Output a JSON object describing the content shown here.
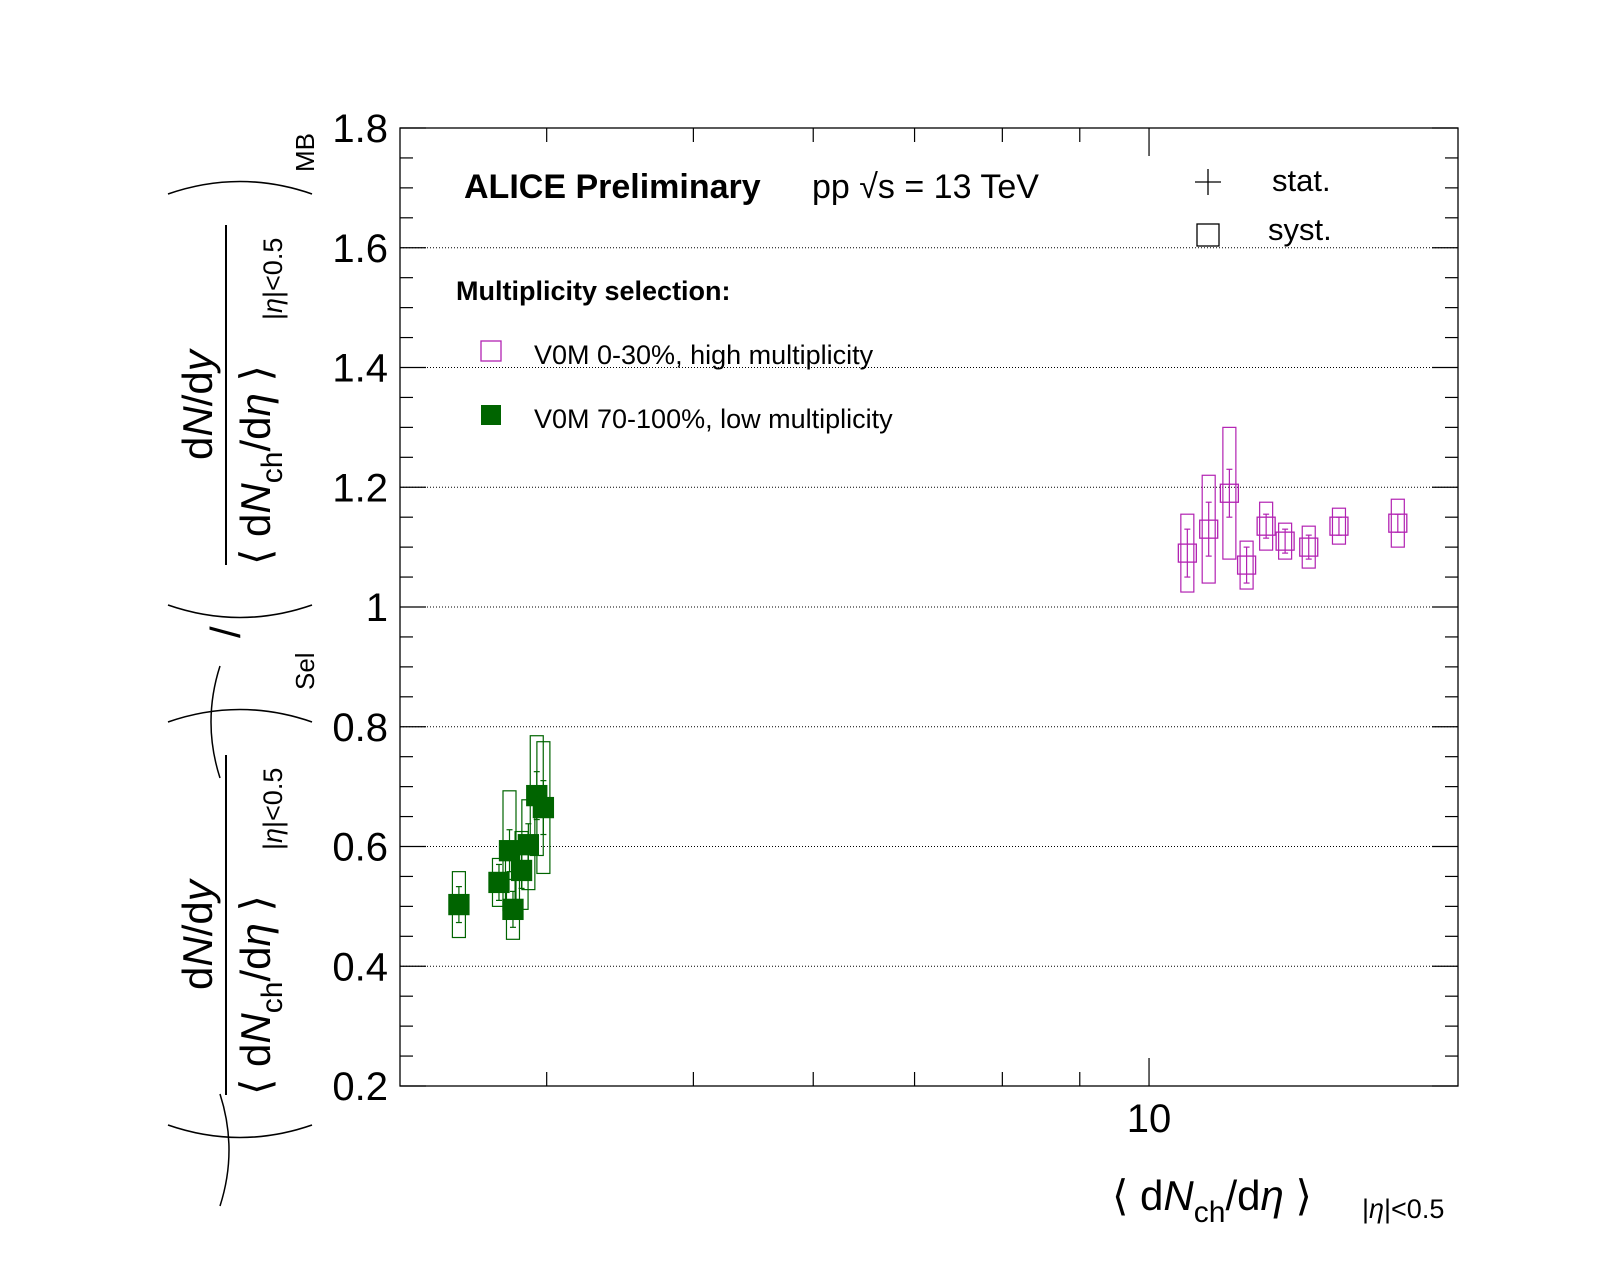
{
  "chart_data": {
    "type": "scatter",
    "title": "ALICE Preliminary",
    "subtitle": "pp √s = 13 TeV",
    "xlabel": "⟨ dN_ch/dη ⟩ |η|<0.5",
    "ylabel": "(dN/dy / ⟨dN_ch/dη⟩_|η|<0.5)_Sel / (dN/dy / ⟨dN_ch/dη⟩_|η|<0.5)_MB",
    "x_scale": "log",
    "xlim": [
      3.2,
      16
    ],
    "ylim": [
      0.2,
      1.8
    ],
    "y_ticks": [
      "0.2",
      "0.4",
      "0.6",
      "0.8",
      "1",
      "1.2",
      "1.4",
      "1.6",
      "1.8"
    ],
    "x_ticks": [
      "10"
    ],
    "grid": "horizontal dotted",
    "legend_title": "Multiplicity selection:",
    "error_legend": [
      "stat.",
      "syst."
    ],
    "series": [
      {
        "name": "V0M 0-30%, high multiplicity",
        "color": "#b222b2",
        "marker": "open-square",
        "points": [
          {
            "x": 10.6,
            "y": 1.09,
            "stat": 0.04,
            "syst": 0.065
          },
          {
            "x": 10.95,
            "y": 1.13,
            "stat": 0.045,
            "syst": 0.09
          },
          {
            "x": 11.3,
            "y": 1.19,
            "stat": 0.04,
            "syst": 0.11
          },
          {
            "x": 11.6,
            "y": 1.07,
            "stat": 0.03,
            "syst": 0.04
          },
          {
            "x": 11.95,
            "y": 1.135,
            "stat": 0.02,
            "syst": 0.04
          },
          {
            "x": 12.3,
            "y": 1.11,
            "stat": 0.02,
            "syst": 0.03
          },
          {
            "x": 12.75,
            "y": 1.1,
            "stat": 0.02,
            "syst": 0.035
          },
          {
            "x": 13.35,
            "y": 1.135,
            "stat": 0.015,
            "syst": 0.03
          },
          {
            "x": 14.6,
            "y": 1.14,
            "stat": 0.015,
            "syst": 0.04
          }
        ]
      },
      {
        "name": "V0M 70-100%, low multiplicity",
        "color": "#006400",
        "marker": "filled-square",
        "points": [
          {
            "x": 3.5,
            "y": 0.503,
            "stat": 0.03,
            "syst": 0.055
          },
          {
            "x": 3.72,
            "y": 0.54,
            "stat": 0.03,
            "syst": 0.04
          },
          {
            "x": 3.78,
            "y": 0.593,
            "stat": 0.035,
            "syst": 0.1
          },
          {
            "x": 3.8,
            "y": 0.495,
            "stat": 0.03,
            "syst": 0.05
          },
          {
            "x": 3.85,
            "y": 0.56,
            "stat": 0.03,
            "syst": 0.065
          },
          {
            "x": 3.89,
            "y": 0.603,
            "stat": 0.035,
            "syst": 0.075
          },
          {
            "x": 3.94,
            "y": 0.685,
            "stat": 0.04,
            "syst": 0.1
          },
          {
            "x": 3.98,
            "y": 0.665,
            "stat": 0.045,
            "syst": 0.11
          }
        ]
      }
    ]
  }
}
